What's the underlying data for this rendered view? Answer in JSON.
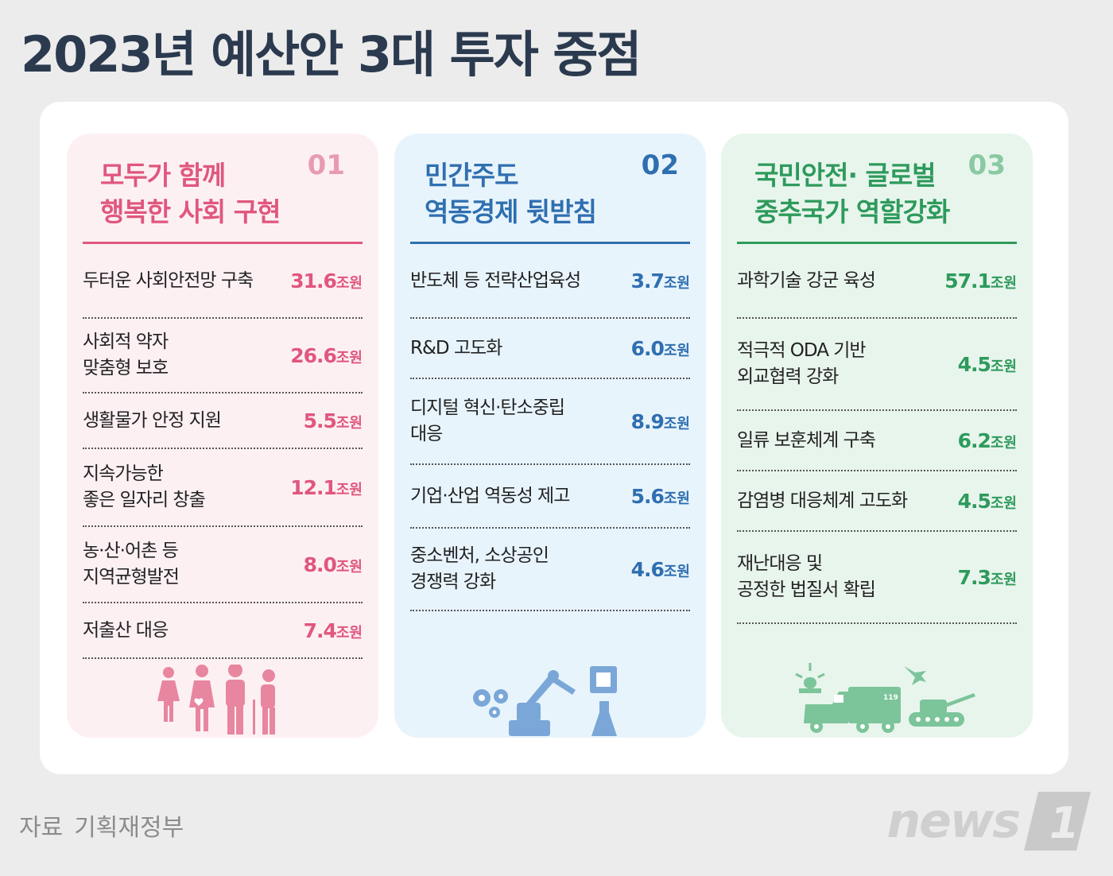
{
  "title": "2023년 예산안 3대 투자 중점",
  "unit": "조원",
  "panels": [
    {
      "num": "01",
      "title": "모두가 함께\n행복한 사회 구현",
      "accent": "#e0577e",
      "items": [
        {
          "label": "두터운 사회안전망 구축",
          "amount": "31.6"
        },
        {
          "label": "사회적 약자\n맞춤형 보호",
          "amount": "26.6"
        },
        {
          "label": "생활물가 안정 지원",
          "amount": "5.5"
        },
        {
          "label": "지속가능한\n좋은 일자리 창출",
          "amount": "12.1"
        },
        {
          "label": "농·산·어촌 등\n지역균형발전",
          "amount": "8.0"
        },
        {
          "label": "저출산 대응",
          "amount": "7.4"
        }
      ],
      "icon": "family-icon"
    },
    {
      "num": "02",
      "title": "민간주도\n역동경제 뒷받침",
      "accent": "#2f6fb0",
      "items": [
        {
          "label": "반도체 등 전략산업육성",
          "amount": "3.7"
        },
        {
          "label": "R&D 고도화",
          "amount": "6.0"
        },
        {
          "label": "디지털 혁신·탄소중립\n대응",
          "amount": "8.9"
        },
        {
          "label": "기업·산업 역동성 제고",
          "amount": "5.6"
        },
        {
          "label": "중소벤처, 소상공인\n경쟁력 강화",
          "amount": "4.6"
        }
      ],
      "icon": "industry-icon"
    },
    {
      "num": "03",
      "title": "국민안전· 글로벌\n중추국가 역할강화",
      "accent": "#2e9a5c",
      "items": [
        {
          "label": "과학기술 강군 육성",
          "amount": "57.1"
        },
        {
          "label": "적극적 ODA 기반\n외교협력 강화",
          "amount": "4.5"
        },
        {
          "label": "일류 보훈체계 구축",
          "amount": "6.2"
        },
        {
          "label": "감염병 대응체계 고도화",
          "amount": "4.5"
        },
        {
          "label": "재난대응 및\n공정한 법질서 확립",
          "amount": "7.3"
        }
      ],
      "icon": "safety-defense-icon",
      "truck_number": "119"
    }
  ],
  "source": {
    "label": "자료",
    "value": "기획재정부"
  },
  "logo": {
    "text": "news",
    "mark": "1"
  }
}
